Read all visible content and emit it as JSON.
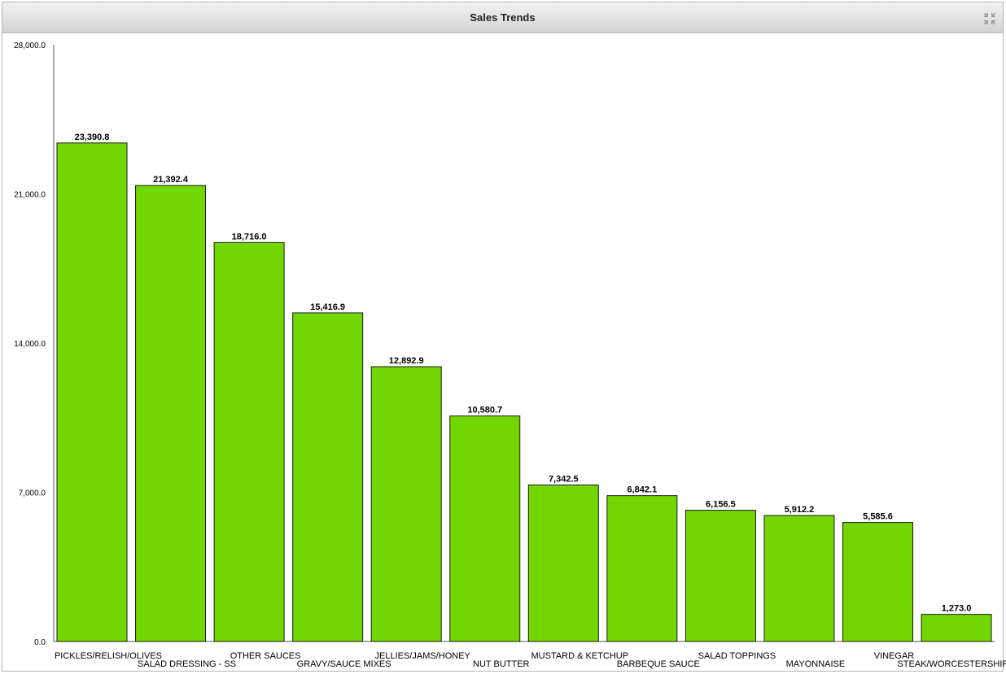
{
  "panel": {
    "title": "Sales Trends",
    "collapse_icon": "collapse-icon"
  },
  "colors": {
    "bar_fill": "#72d600",
    "bar_stroke": "#1a1a1a",
    "axis": "#555555",
    "text": "#000000"
  },
  "chart_data": {
    "type": "bar",
    "title": "Sales Trends",
    "xlabel": "",
    "ylabel": "",
    "ylim": [
      0,
      28000
    ],
    "yticks": [
      "0.0",
      "7,000.0",
      "14,000.0",
      "21,000.0",
      "28,000.0"
    ],
    "ytick_values": [
      0,
      7000,
      14000,
      21000,
      28000
    ],
    "grid": false,
    "categories": [
      "PICKLES/RELISH/OLIVES",
      "SALAD DRESSING - SS",
      "OTHER SAUCES",
      "GRAVY/SAUCE MIXES",
      "JELLIES/JAMS/HONEY",
      "NUT BUTTER",
      "MUSTARD & KETCHUP",
      "BARBEQUE SAUCE",
      "SALAD TOPPINGS",
      "MAYONNAISE",
      "VINEGAR",
      "STEAK/WORCESTERSHIRE SAUCE"
    ],
    "values": [
      23390.8,
      21392.4,
      18716.0,
      15416.9,
      12892.9,
      10580.7,
      7342.5,
      6842.1,
      6156.5,
      5912.2,
      5585.6,
      1273.0
    ],
    "value_labels": [
      "23,390.8",
      "21,392.4",
      "18,716.0",
      "15,416.9",
      "12,892.9",
      "10,580.7",
      "7,342.5",
      "6,842.1",
      "6,156.5",
      "5,912.2",
      "5,585.6",
      "1,273.0"
    ]
  }
}
